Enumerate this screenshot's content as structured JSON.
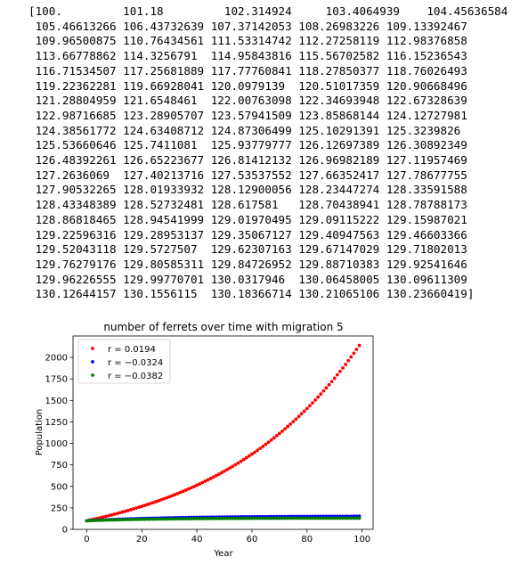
{
  "array_output_lines": [
    "[100.         101.18         102.314924     103.4064939    104.45636584",
    " 105.46613266 106.43732639 107.37142053 108.26983226 109.13392467",
    " 109.96500875 110.76434561 111.53314742 112.27258119 112.98376858",
    " 113.66778862 114.3256791  114.95843816 115.56702582 116.15236543",
    " 116.71534507 117.25681889 117.77760841 118.27850377 118.76026493",
    " 119.22362281 119.66928041 120.0979139  120.51017359 120.90668496",
    " 121.28804959 121.6548461  122.00763098 122.34693948 122.67328639",
    " 122.98716685 123.28905707 123.57941509 123.85868144 124.12727981",
    " 124.38561772 124.63408712 124.87306499 125.10291391 125.3239826",
    " 125.53660646 125.7411081  125.93779777 126.12697389 126.30892349",
    " 126.48392261 126.65223677 126.81412132 126.96982189 127.11957469",
    " 127.2636069  127.40213716 127.53537552 127.66352417 127.78677755",
    " 127.90532265 128.01933932 128.12900056 128.23447274 128.33591588",
    " 128.43348389 128.52732481 128.617581   128.70438941 128.78788173",
    " 128.86818465 128.94541999 129.01970495 129.09115222 129.15987021",
    " 129.22596316 129.28953137 129.35067127 129.40947563 129.46603366",
    " 129.52043118 129.5727507  129.62307163 129.67147029 129.71802013",
    " 129.76279176 129.80585311 129.84726952 129.88710383 129.92541646",
    " 129.96226555 129.99770701 130.0317946  130.06458005 130.09611309",
    " 130.12644157 130.1556115  130.18366714 130.21065106 130.23660419]"
  ],
  "chart_data": {
    "type": "scatter",
    "title": "number of ferrets over time with migration 5",
    "xlabel": "Year",
    "ylabel": "Population",
    "xlim": [
      -5,
      104
    ],
    "ylim": [
      0,
      2250
    ],
    "xticks": [
      "0",
      "20",
      "40",
      "60",
      "80",
      "100"
    ],
    "yticks": [
      "0",
      "250",
      "500",
      "750",
      "1000",
      "1250",
      "1500",
      "1750",
      "2000"
    ],
    "grid": false,
    "legend_position": "top-left",
    "n_points": 100,
    "series": [
      {
        "name": "r = 0.0194",
        "color": "#ff0000",
        "x_start": 0,
        "step": 1,
        "growth_rate": 0.0194,
        "migration": 5,
        "initial": 100
      },
      {
        "name": "r = −0.0324",
        "color": "#0000ff",
        "x_start": 0,
        "step": 1,
        "growth_rate": -0.0324,
        "migration": 5,
        "initial": 100
      },
      {
        "name": "r = −0.0382",
        "color": "#008000",
        "x_start": 0,
        "step": 1,
        "growth_rate": -0.0382,
        "migration": 5,
        "initial": 100
      }
    ]
  }
}
